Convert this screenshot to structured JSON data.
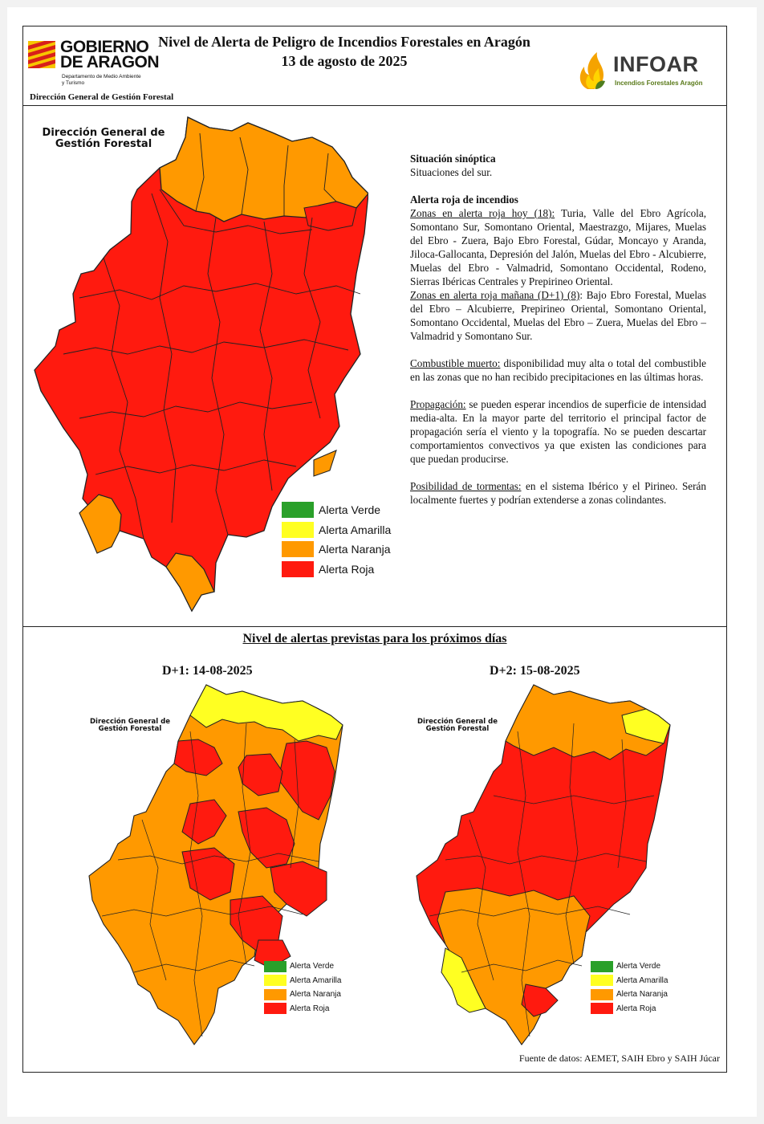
{
  "header": {
    "gov_name_line1": "GOBIERNO",
    "gov_name_line2": "DE ARAGON",
    "gov_dept_line1": "Departamento de Medio Ambiente",
    "gov_dept_line2": "y Turismo",
    "directorate": "Dirección General de Gestión Forestal",
    "title": "Nivel de Alerta de Peligro de Incendios Forestales en Aragón",
    "date": "13 de agosto de 2025",
    "brand_name": "INFOAR",
    "brand_tagline": "Incendios Forestales Aragón"
  },
  "colors": {
    "verde": "#2aa02a",
    "amarilla": "#ffff22",
    "naranja": "#ff9900",
    "roja": "#ff1a0f"
  },
  "main_map": {
    "label_line1": "Dirección General de",
    "label_line2": "Gestión Forestal"
  },
  "legend": [
    {
      "label": "Alerta Verde",
      "color": "#2aa02a"
    },
    {
      "label": "Alerta Amarilla",
      "color": "#ffff22"
    },
    {
      "label": "Alerta Naranja",
      "color": "#ff9900"
    },
    {
      "label": "Alerta Roja",
      "color": "#ff1a0f"
    }
  ],
  "bulletin": {
    "synoptic_heading": "Situación sinóptica",
    "synoptic_text": "Situaciones del sur.",
    "red_alert_heading": "Alerta roja de incendios",
    "today_label": "Zonas en alerta roja hoy (18):",
    "today_zones": " Turia, Valle del Ebro Agrícola, Somontano Sur, Somontano Oriental, Maestrazgo, Mijares, Muelas del Ebro - Zuera, Bajo Ebro Forestal, Gúdar, Moncayo y Aranda, Jiloca-Gallocanta, Depresión del Jalón, Muelas del Ebro - Alcubierre, Muelas del Ebro - Valmadrid, Somontano Occidental, Rodeno, Sierras Ibéricas Centrales y Prepirineo Oriental.",
    "tomorrow_label": "Zonas en alerta roja mañana (D+1) (8)",
    "tomorrow_zones": ": Bajo Ebro Forestal, Muelas del Ebro – Alcubierre, Prepirineo Oriental, Somontano Oriental, Somontano Occidental, Muelas del Ebro – Zuera, Muelas del Ebro – Valmadrid y Somontano Sur.",
    "fuel_label": "Combustible muerto:",
    "fuel_text": " disponibilidad muy alta o total del combustible en las zonas que no han recibido precipitaciones en las últimas horas.",
    "propagation_label": "Propagación:",
    "propagation_text": " se pueden esperar incendios de superficie de intensidad media-alta. En la mayor parte del territorio el principal factor de propagación sería el viento y la topografía. No se pueden descartar comportamientos convectivos ya que existen las condiciones para que puedan producirse.",
    "storms_label": "Posibilidad de tormentas:",
    "storms_text": " en el sistema Ibérico y el Pirineo. Serán localmente fuertes y podrían extenderse a zonas colindantes."
  },
  "forecast": {
    "section_title": "Nivel de alertas previstas para los próximos días",
    "d1_title": "D+1: 14-08-2025",
    "d2_title": "D+2: 15-08-2025",
    "map_label_line1": "Dirección General de",
    "map_label_line2": "Gestión Forestal"
  },
  "source": "Fuente de datos: AEMET, SAIH Ebro y SAIH Júcar"
}
